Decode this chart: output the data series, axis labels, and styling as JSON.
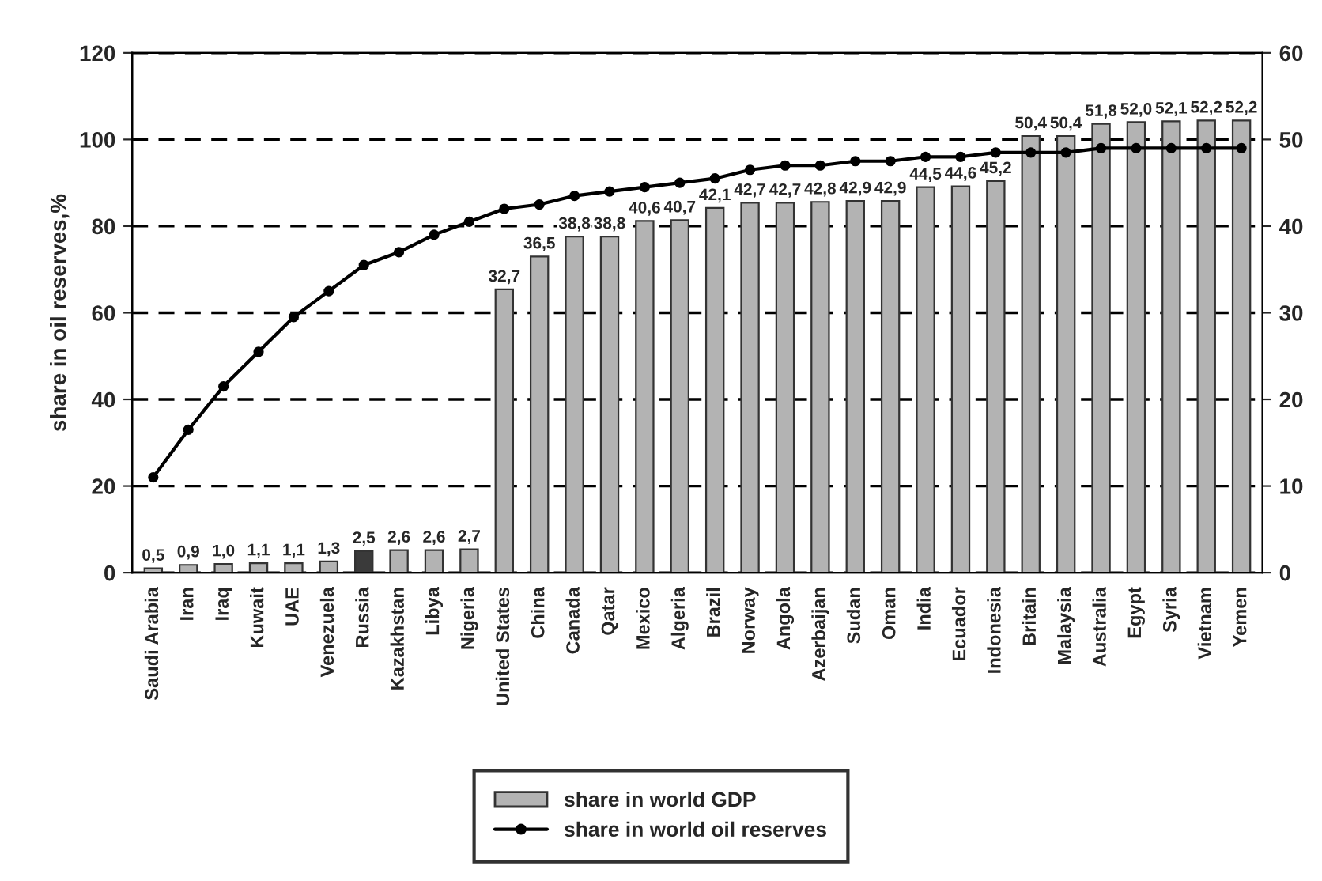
{
  "chart_data": {
    "type": "bar",
    "categories": [
      "Saudi Arabia",
      "Iran",
      "Iraq",
      "Kuwait",
      "UAE",
      "Venezuela",
      "Russia",
      "Kazakhstan",
      "Libya",
      "Nigeria",
      "United States",
      "China",
      "Canada",
      "Qatar",
      "Mexico",
      "Algeria",
      "Brazil",
      "Norway",
      "Angola",
      "Azerbaijan",
      "Sudan",
      "Oman",
      "India",
      "Ecuador",
      "Indonesia",
      "Britain",
      "Malaysia",
      "Australia",
      "Egypt",
      "Syria",
      "Vietnam",
      "Yemen"
    ],
    "series": [
      {
        "name": "share in world GDP",
        "axis": "y2",
        "color": "#b3b3b3",
        "colors": [
          "#b3b3b3",
          "#b3b3b3",
          "#b3b3b3",
          "#b3b3b3",
          "#b3b3b3",
          "#b3b3b3",
          "#3a3a3a",
          "#b3b3b3",
          "#b3b3b3",
          "#b3b3b3",
          "#b3b3b3",
          "#b3b3b3",
          "#b3b3b3",
          "#b3b3b3",
          "#b3b3b3",
          "#b3b3b3",
          "#b3b3b3",
          "#b3b3b3",
          "#b3b3b3",
          "#b3b3b3",
          "#b3b3b3",
          "#b3b3b3",
          "#b3b3b3",
          "#b3b3b3",
          "#b3b3b3",
          "#b3b3b3",
          "#b3b3b3",
          "#b3b3b3",
          "#b3b3b3",
          "#b3b3b3",
          "#b3b3b3",
          "#b3b3b3"
        ],
        "values": [
          0.5,
          0.9,
          1.0,
          1.1,
          1.1,
          1.3,
          2.5,
          2.6,
          2.6,
          2.7,
          32.7,
          36.5,
          38.8,
          38.8,
          40.6,
          40.7,
          42.1,
          42.7,
          42.7,
          42.8,
          42.9,
          42.9,
          44.5,
          44.6,
          45.2,
          50.4,
          50.4,
          51.8,
          52.0,
          52.1,
          52.2,
          52.2
        ],
        "value_labels": [
          "0,5",
          "0,9",
          "1,0",
          "1,1",
          "1,1",
          "1,3",
          "2,5",
          "2,6",
          "2,6",
          "2,7",
          "32,7",
          "36,5",
          "38,8",
          "38,8",
          "40,6",
          "40,7",
          "42,1",
          "42,7",
          "42,7",
          "42,8",
          "42,9",
          "42,9",
          "44,5",
          "44,6",
          "45,2",
          "50,4",
          "50,4",
          "51,8",
          "52,0",
          "52,1",
          "52,2",
          "52,2"
        ]
      },
      {
        "name": "share in world oil reserves",
        "type": "line",
        "color": "#000000",
        "values": [
          22,
          33,
          43,
          51,
          59,
          65,
          71,
          74,
          78,
          81,
          84,
          85,
          87,
          88,
          89,
          90,
          91,
          93,
          94,
          94,
          95,
          95,
          96,
          96,
          97,
          97,
          97,
          98,
          98,
          98,
          98,
          98
        ]
      }
    ],
    "ylabel": "share in oil reserves,%",
    "ylim": [
      0,
      120
    ],
    "yticks": [
      0,
      20,
      40,
      60,
      80,
      100,
      120
    ],
    "y2lim": [
      0,
      60
    ],
    "y2ticks": [
      0,
      10,
      20,
      30,
      40,
      50,
      60
    ],
    "grid": "y",
    "legend": "bottom",
    "marker": "circle",
    "line_style": "solid"
  }
}
